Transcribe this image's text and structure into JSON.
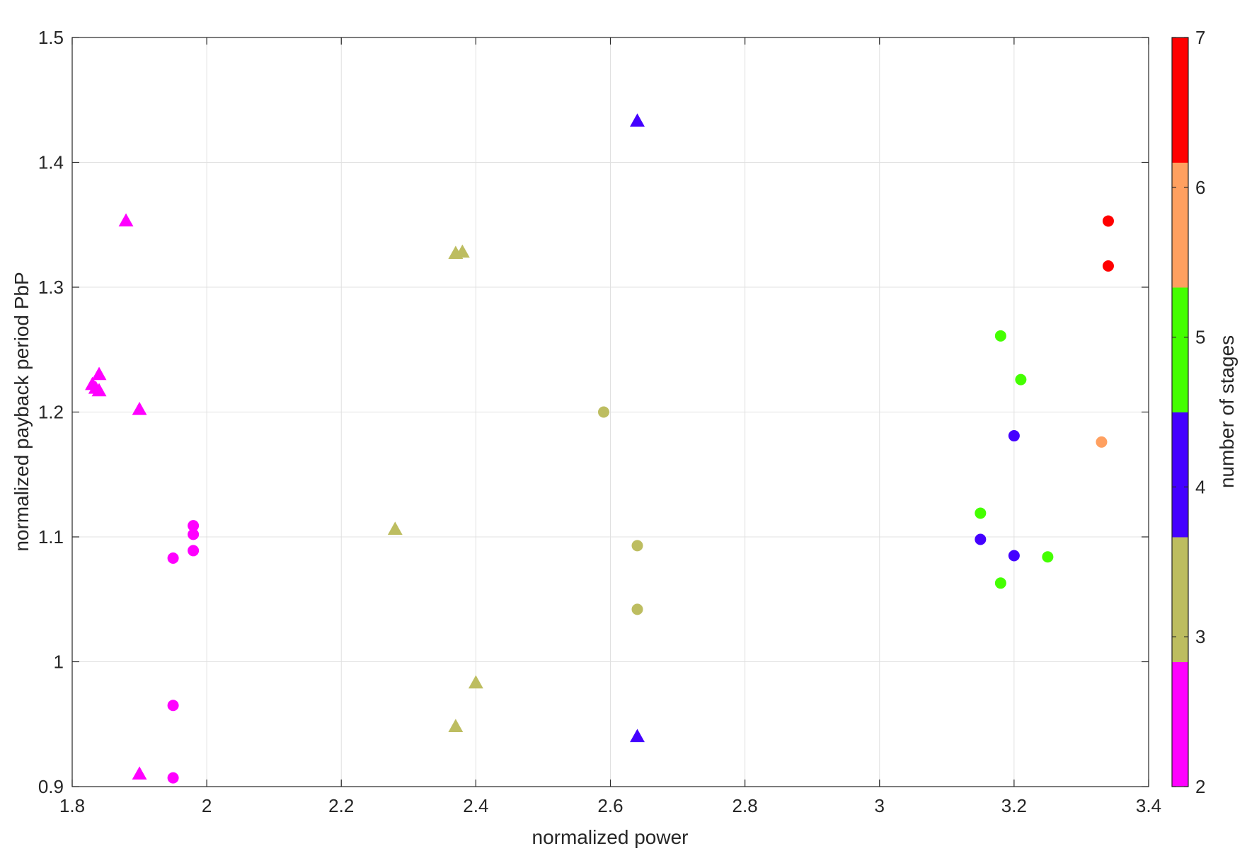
{
  "chart_data": {
    "type": "scatter",
    "title": "",
    "xlabel": "normalized power",
    "ylabel": "normalized payback period PbP",
    "xlim": [
      1.8,
      3.4
    ],
    "ylim": [
      0.9,
      1.5
    ],
    "xticks": [
      "1.8",
      "2",
      "2.2",
      "2.4",
      "2.6",
      "2.8",
      "3",
      "3.2",
      "3.4"
    ],
    "yticks": [
      "0.9",
      "1",
      "1.1",
      "1.2",
      "1.3",
      "1.4",
      "1.5"
    ],
    "grid": true,
    "colorbar": {
      "label": "number of stages",
      "range": [
        2,
        7
      ],
      "ticks": [
        "2",
        "3",
        "4",
        "5",
        "6",
        "7"
      ],
      "colors": [
        "#ff00ff",
        "#bdbd60",
        "#4400ff",
        "#44ff00",
        "#ffa060",
        "#ff0000"
      ]
    },
    "points": [
      {
        "x": 1.88,
        "y": 1.353,
        "stages": 2,
        "marker": "triangle"
      },
      {
        "x": 1.83,
        "y": 1.222,
        "stages": 2,
        "marker": "triangle"
      },
      {
        "x": 1.835,
        "y": 1.219,
        "stages": 2,
        "marker": "triangle"
      },
      {
        "x": 1.84,
        "y": 1.23,
        "stages": 2,
        "marker": "triangle"
      },
      {
        "x": 1.84,
        "y": 1.217,
        "stages": 2,
        "marker": "triangle"
      },
      {
        "x": 1.9,
        "y": 1.202,
        "stages": 2,
        "marker": "triangle"
      },
      {
        "x": 1.9,
        "y": 0.91,
        "stages": 2,
        "marker": "triangle"
      },
      {
        "x": 1.98,
        "y": 1.109,
        "stages": 2,
        "marker": "circle"
      },
      {
        "x": 1.98,
        "y": 1.102,
        "stages": 2,
        "marker": "circle"
      },
      {
        "x": 1.98,
        "y": 1.089,
        "stages": 2,
        "marker": "circle"
      },
      {
        "x": 1.95,
        "y": 1.083,
        "stages": 2,
        "marker": "circle"
      },
      {
        "x": 1.95,
        "y": 0.965,
        "stages": 2,
        "marker": "circle"
      },
      {
        "x": 1.95,
        "y": 0.907,
        "stages": 2,
        "marker": "circle"
      },
      {
        "x": 2.37,
        "y": 1.327,
        "stages": 3,
        "marker": "triangle"
      },
      {
        "x": 2.38,
        "y": 1.328,
        "stages": 3,
        "marker": "triangle"
      },
      {
        "x": 2.28,
        "y": 1.106,
        "stages": 3,
        "marker": "triangle"
      },
      {
        "x": 2.4,
        "y": 0.983,
        "stages": 3,
        "marker": "triangle"
      },
      {
        "x": 2.37,
        "y": 0.948,
        "stages": 3,
        "marker": "triangle"
      },
      {
        "x": 2.59,
        "y": 1.2,
        "stages": 3,
        "marker": "circle"
      },
      {
        "x": 2.64,
        "y": 1.093,
        "stages": 3,
        "marker": "circle"
      },
      {
        "x": 2.64,
        "y": 1.042,
        "stages": 3,
        "marker": "circle"
      },
      {
        "x": 2.64,
        "y": 1.433,
        "stages": 4,
        "marker": "triangle"
      },
      {
        "x": 2.64,
        "y": 0.94,
        "stages": 4,
        "marker": "triangle"
      },
      {
        "x": 3.2,
        "y": 1.181,
        "stages": 4,
        "marker": "circle"
      },
      {
        "x": 3.15,
        "y": 1.098,
        "stages": 4,
        "marker": "circle"
      },
      {
        "x": 3.2,
        "y": 1.085,
        "stages": 4,
        "marker": "circle"
      },
      {
        "x": 3.18,
        "y": 1.261,
        "stages": 5,
        "marker": "circle"
      },
      {
        "x": 3.21,
        "y": 1.226,
        "stages": 5,
        "marker": "circle"
      },
      {
        "x": 3.15,
        "y": 1.119,
        "stages": 5,
        "marker": "circle"
      },
      {
        "x": 3.25,
        "y": 1.084,
        "stages": 5,
        "marker": "circle"
      },
      {
        "x": 3.18,
        "y": 1.063,
        "stages": 5,
        "marker": "circle"
      },
      {
        "x": 3.33,
        "y": 1.176,
        "stages": 6,
        "marker": "circle"
      },
      {
        "x": 3.34,
        "y": 1.353,
        "stages": 7,
        "marker": "circle"
      },
      {
        "x": 3.34,
        "y": 1.317,
        "stages": 7,
        "marker": "circle"
      }
    ]
  }
}
